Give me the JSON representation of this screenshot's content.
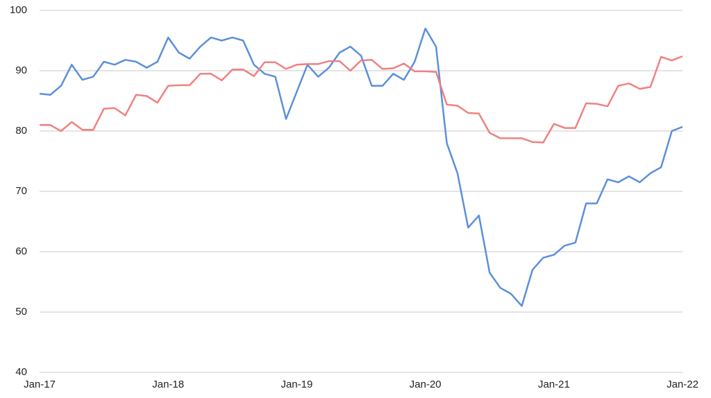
{
  "chart_data": {
    "type": "line",
    "x": [
      "2017-01",
      "2017-02",
      "2017-03",
      "2017-04",
      "2017-05",
      "2017-06",
      "2017-07",
      "2017-08",
      "2017-09",
      "2017-10",
      "2017-11",
      "2017-12",
      "2018-01",
      "2018-02",
      "2018-03",
      "2018-04",
      "2018-05",
      "2018-06",
      "2018-07",
      "2018-08",
      "2018-09",
      "2018-10",
      "2018-11",
      "2018-12",
      "2019-01",
      "2019-02",
      "2019-03",
      "2019-04",
      "2019-05",
      "2019-06",
      "2019-07",
      "2019-08",
      "2019-09",
      "2019-10",
      "2019-11",
      "2019-12",
      "2020-01",
      "2020-02",
      "2020-03",
      "2020-04",
      "2020-05",
      "2020-06",
      "2020-07",
      "2020-08",
      "2020-09",
      "2020-10",
      "2020-11",
      "2020-12",
      "2021-01",
      "2021-02",
      "2021-03",
      "2021-04",
      "2021-05",
      "2021-06",
      "2021-07",
      "2021-08",
      "2021-09",
      "2021-10",
      "2021-11",
      "2021-12",
      "2022-01"
    ],
    "series": [
      {
        "color": "#5b8fdb",
        "values": [
          86.2,
          86.0,
          87.5,
          91,
          88.5,
          89,
          91.5,
          91,
          91.8,
          91.5,
          90.5,
          91.5,
          95.5,
          93,
          92,
          94,
          95.5,
          95,
          95.5,
          95,
          91,
          89.5,
          89,
          82,
          86.5,
          91,
          89,
          90.5,
          93,
          94,
          92.5,
          87.5,
          87.5,
          89.5,
          88.5,
          91.5,
          97,
          94,
          78,
          73,
          64,
          66,
          56.5,
          54,
          53,
          51,
          57,
          59,
          59.5,
          61,
          61.5,
          68,
          68,
          72,
          71.5,
          72.5,
          71.5,
          73,
          74,
          80,
          80.7
        ]
      },
      {
        "color": "#f08080",
        "values": [
          81,
          81,
          80,
          81.5,
          80.2,
          80.2,
          83.7,
          83.8,
          82.6,
          86,
          85.8,
          84.7,
          87.5,
          87.6,
          87.6,
          89.5,
          89.5,
          88.4,
          90.2,
          90.2,
          89.1,
          91.4,
          91.4,
          90.3,
          91,
          91.1,
          91.1,
          91.6,
          91.6,
          90,
          91.7,
          91.8,
          90.3,
          90.4,
          91.2,
          89.9,
          89.9,
          89.8,
          84.4,
          84.2,
          83,
          82.9,
          79.7,
          78.8,
          78.8,
          78.8,
          78.2,
          78.1,
          81.2,
          80.5,
          80.5,
          84.6,
          84.5,
          84.1,
          87.5,
          87.9,
          87,
          87.3,
          92.3,
          91.7,
          92.4
        ]
      }
    ],
    "xlim": [
      "2017-01",
      "2022-01"
    ],
    "xticks": [
      {
        "value": "2017-01",
        "label": "Jan-17"
      },
      {
        "value": "2018-01",
        "label": "Jan-18"
      },
      {
        "value": "2019-01",
        "label": "Jan-19"
      },
      {
        "value": "2020-01",
        "label": "Jan-20"
      },
      {
        "value": "2021-01",
        "label": "Jan-21"
      },
      {
        "value": "2022-01",
        "label": "Jan-22"
      }
    ],
    "ylim": [
      40,
      100
    ],
    "yticks": [
      40,
      50,
      60,
      70,
      80,
      90,
      100
    ],
    "grid": true
  }
}
